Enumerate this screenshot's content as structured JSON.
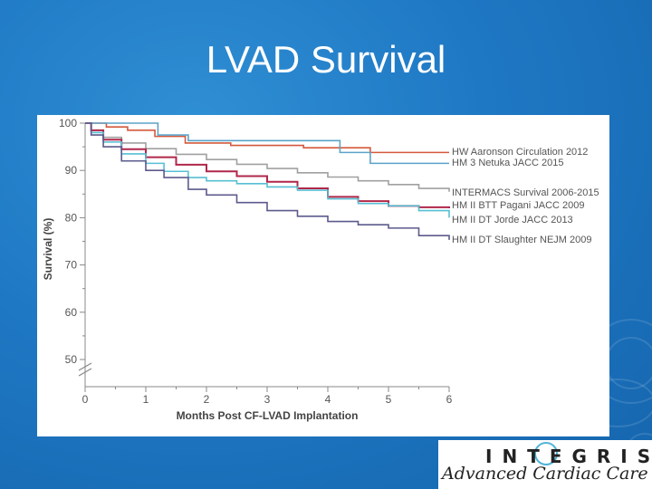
{
  "slide": {
    "title": "LVAD Survival"
  },
  "logo": {
    "line1": "INTEGRIS",
    "line2": "Advanced Cardiac Care"
  },
  "chart_data": {
    "type": "line",
    "title": "",
    "xlabel": "Months Post CF-LVAD Implantation",
    "ylabel": "Survival (%)",
    "xlim": [
      0,
      6
    ],
    "ylim": [
      45,
      100
    ],
    "axis_break": true,
    "xticks": [
      0,
      1,
      2,
      3,
      4,
      5,
      6
    ],
    "yticks": [
      50,
      60,
      70,
      80,
      90,
      100
    ],
    "legend_position": "right-end-labels",
    "series": [
      {
        "name": "HW Aaronson Circulation 2012",
        "color": "#d4593c",
        "x": [
          0,
          0.35,
          0.7,
          1.15,
          1.65,
          2.4,
          3.6,
          4.7,
          6.0
        ],
        "y": [
          100,
          99.2,
          98.5,
          97.2,
          95.8,
          95.3,
          94.8,
          93.8,
          93.8
        ]
      },
      {
        "name": "HM 3 Netuka JACC 2015",
        "color": "#5ba3c9",
        "x": [
          0,
          0.6,
          1.2,
          1.7,
          3.7,
          4.2,
          4.7,
          6.0
        ],
        "y": [
          100,
          100,
          97.5,
          96.3,
          96.3,
          93.8,
          91.5,
          91.5
        ]
      },
      {
        "name": "INTERMACS Survival 2006-2015",
        "color": "#a0a0a0",
        "x": [
          0,
          0.1,
          0.3,
          0.6,
          1.0,
          1.5,
          2.0,
          2.5,
          3.0,
          3.5,
          4.0,
          4.5,
          5.0,
          5.5,
          6.0
        ],
        "y": [
          100,
          98.5,
          97,
          95.8,
          94.6,
          93.4,
          92.3,
          91.3,
          90.4,
          89.5,
          88.6,
          87.8,
          87.0,
          86.2,
          85.5
        ]
      },
      {
        "name": "HM II BTT Pagani JACC 2009",
        "color": "#b0274a",
        "x": [
          0,
          0.1,
          0.3,
          0.6,
          1.0,
          1.5,
          2.0,
          2.5,
          3.0,
          3.5,
          4.0,
          4.5,
          5.0,
          5.5,
          6.0
        ],
        "y": [
          100,
          98.5,
          96.5,
          94.5,
          92.8,
          91.2,
          89.8,
          88.8,
          87.6,
          86.2,
          84.4,
          83.5,
          82.5,
          82.2,
          82.0
        ]
      },
      {
        "name": "HM II DT Jorde JACC 2013",
        "color": "#56bfd4",
        "x": [
          0,
          0.1,
          0.3,
          0.6,
          1.0,
          1.3,
          1.7,
          2.0,
          2.5,
          3.0,
          3.5,
          4.0,
          4.5,
          5.0,
          5.5,
          6.0
        ],
        "y": [
          100,
          98,
          96,
          93.5,
          91.5,
          89.8,
          88.5,
          87.8,
          87.2,
          86.5,
          85.8,
          84.0,
          83.0,
          82.5,
          81.5,
          80.0
        ]
      },
      {
        "name": "HM II DT Slaughter NEJM 2009",
        "color": "#5c5a8c",
        "x": [
          0,
          0.1,
          0.3,
          0.6,
          1.0,
          1.3,
          1.7,
          2.0,
          2.5,
          3.0,
          3.5,
          4.0,
          4.5,
          5.0,
          5.5,
          6.0
        ],
        "y": [
          100,
          97.5,
          95,
          92,
          90,
          88.5,
          86,
          84.8,
          83.2,
          81.5,
          80.3,
          79.2,
          78.5,
          77.8,
          76.2,
          75.3
        ]
      }
    ]
  }
}
